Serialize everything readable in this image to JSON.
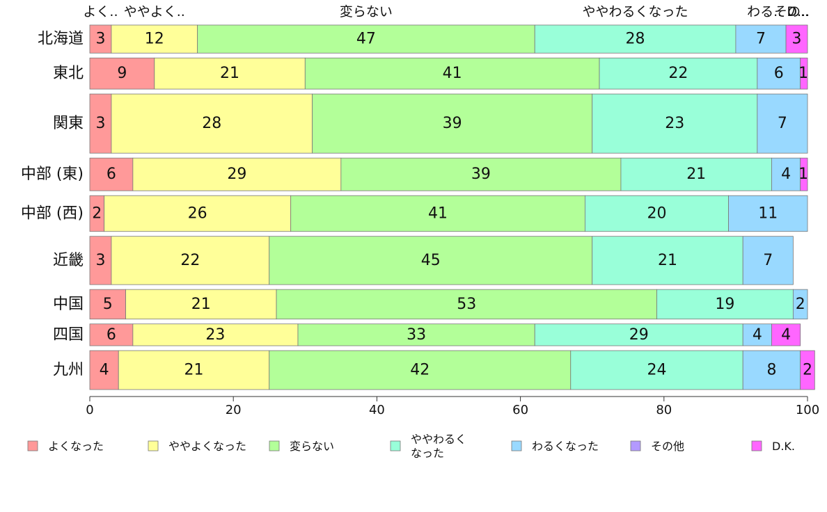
{
  "chart_data": {
    "type": "bar",
    "orientation": "horizontal",
    "stacked": true,
    "title": "",
    "xlabel": "",
    "ylabel": "",
    "xlim": [
      0,
      100
    ],
    "x_ticks": [
      0,
      20,
      40,
      60,
      80,
      100
    ],
    "grid": false,
    "legend_position": "bottom",
    "categories": [
      "北海道",
      "東北",
      "関東",
      "中部 (東)",
      "中部 (西)",
      "近畿",
      "中国",
      "四国",
      "九州"
    ],
    "bar_weights": [
      0.9,
      1.0,
      1.9,
      1.05,
      1.15,
      1.55,
      0.95,
      0.7,
      1.25
    ],
    "series": [
      {
        "name": "よくなった",
        "color": "#ff9999",
        "values": [
          3,
          9,
          3,
          6,
          2,
          3,
          5,
          6,
          4
        ]
      },
      {
        "name": "ややよくなった",
        "color": "#ffff99",
        "values": [
          12,
          21,
          28,
          29,
          26,
          22,
          21,
          23,
          21
        ]
      },
      {
        "name": "変らない",
        "color": "#b3ff99",
        "values": [
          47,
          41,
          39,
          39,
          41,
          45,
          53,
          33,
          42
        ]
      },
      {
        "name": "ややわるくなった",
        "color": "#99ffd9",
        "values": [
          28,
          22,
          23,
          21,
          20,
          21,
          19,
          29,
          24
        ]
      },
      {
        "name": "わるくなった",
        "color": "#99d9ff",
        "values": [
          7,
          6,
          7,
          4,
          11,
          7,
          2,
          4,
          8
        ]
      },
      {
        "name": "その他",
        "color": "#b399ff",
        "values": [
          0,
          0,
          0,
          0,
          0,
          0,
          0,
          0,
          0
        ]
      },
      {
        "name": "D.K.",
        "color": "#ff66ff",
        "values": [
          3,
          1,
          0,
          1,
          0,
          0,
          0,
          4,
          2
        ]
      }
    ],
    "segment_labels": [
      [
        "3",
        "12",
        "47",
        "28",
        "7",
        "",
        "3"
      ],
      [
        "9",
        "21",
        "41",
        "22",
        "6",
        "",
        "1"
      ],
      [
        "3",
        "28",
        "39",
        "23",
        "7",
        "",
        ""
      ],
      [
        "6",
        "29",
        "39",
        "21",
        "4",
        "",
        "1"
      ],
      [
        "2",
        "26",
        "41",
        "20",
        "11",
        "",
        ""
      ],
      [
        "3",
        "22",
        "45",
        "21",
        "7",
        "",
        ""
      ],
      [
        "5",
        "21",
        "53",
        "19",
        "2",
        "",
        ""
      ],
      [
        "6",
        "23",
        "33",
        "29",
        "4",
        "",
        "4"
      ],
      [
        "4",
        "21",
        "42",
        "24",
        "8",
        "",
        "2"
      ]
    ],
    "top_labels": [
      "よく..",
      "ややよく..",
      "変らない",
      "ややわるくなった",
      "わる..",
      "その..",
      "D..."
    ],
    "legend": [
      {
        "text": "よくなった",
        "color": "#ff9999"
      },
      {
        "text": "ややよくなった",
        "color": "#ffff99"
      },
      {
        "text": "変らない",
        "color": "#b3ff99"
      },
      {
        "text": "ややわるく\nなった",
        "color": "#99ffd9"
      },
      {
        "text": "わるくなった",
        "color": "#99d9ff"
      },
      {
        "text": "その他",
        "color": "#b399ff"
      },
      {
        "text": "D.K.",
        "color": "#ff66ff"
      }
    ]
  }
}
